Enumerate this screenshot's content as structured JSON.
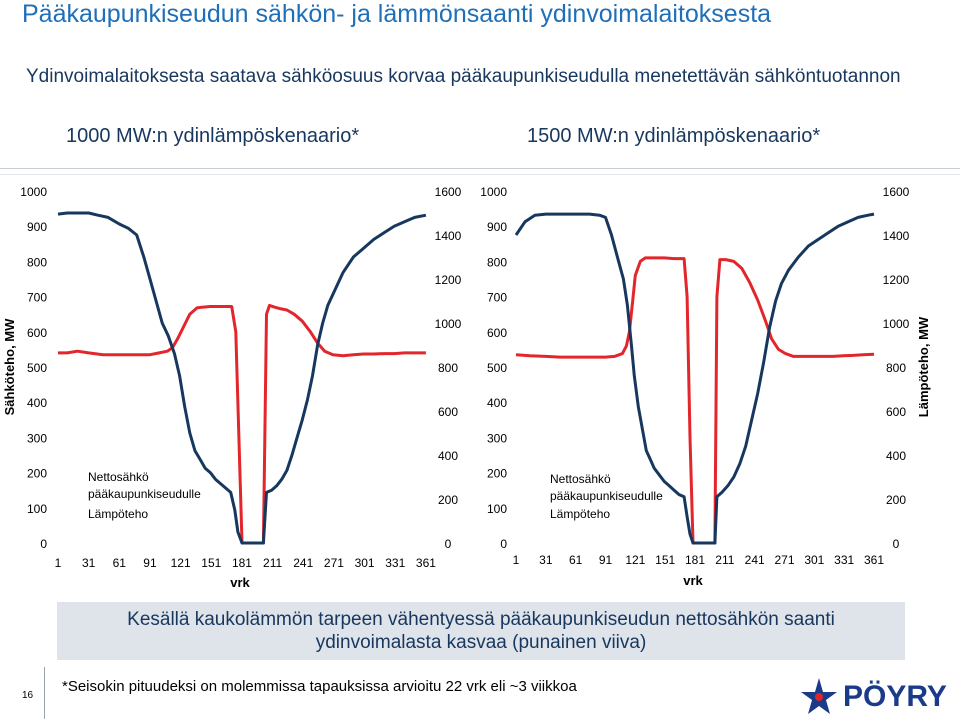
{
  "title": "Pääkaupunkiseudun sähkön- ja lämmönsaanti ydinvoimalaitoksesta",
  "subtitle": "Ydinvoimalaitoksesta saatava sähköosuus korvaa pääkaupunkiseudulla menetettävän sähköntuotannon",
  "note": {
    "line1": "Kesällä kaukolämmön tarpeen vähentyessä pääkaupunkiseudun nettosähkön saanti",
    "line2": "ydinvoimalasta kasvaa (punainen viiva)"
  },
  "footnote": "*Seisokin pituudeksi on molemmissa tapauksissa arvioitu 22 vrk eli ~3 viikkoa",
  "page_number": "16",
  "logo": {
    "text": "PÖYRY",
    "icon": "poyry-logo-icon",
    "color": "#1a3a8a",
    "accent": "#d9262c"
  },
  "chart_data": [
    {
      "type": "line",
      "title": "1000 MW:n ydinlämpöskenaario*",
      "xlabel": "vrk",
      "ylabel": "Sähköteho, MW",
      "y2label": "",
      "ylim": [
        0,
        1000
      ],
      "y2lim": [
        0,
        1600
      ],
      "xticks": [
        "1",
        "31",
        "61",
        "91",
        "121",
        "151",
        "181",
        "211",
        "241",
        "271",
        "301",
        "331",
        "361"
      ],
      "yticks": [
        "0",
        "100",
        "200",
        "300",
        "400",
        "500",
        "600",
        "700",
        "800",
        "900",
        "1000"
      ],
      "y2ticks": [
        "0",
        "200",
        "400",
        "600",
        "800",
        "1000",
        "1200",
        "1400",
        "1600"
      ],
      "grid": false,
      "legend_position": "bottom-left",
      "series": [
        {
          "name": "Nettosähkö pääkaupunkiseudulle",
          "color": "#e3262c",
          "axis": "left",
          "points": [
            [
              1,
              540
            ],
            [
              10,
              540
            ],
            [
              20,
              545
            ],
            [
              31,
              540
            ],
            [
              45,
              535
            ],
            [
              61,
              535
            ],
            [
              75,
              535
            ],
            [
              85,
              535
            ],
            [
              91,
              535
            ],
            [
              100,
              540
            ],
            [
              108,
              545
            ],
            [
              113,
              555
            ],
            [
              118,
              580
            ],
            [
              124,
              615
            ],
            [
              130,
              650
            ],
            [
              137,
              668
            ],
            [
              142,
              670
            ],
            [
              150,
              672
            ],
            [
              158,
              672
            ],
            [
              164,
              672
            ],
            [
              167,
              672
            ],
            [
              171,
              672
            ],
            [
              175,
              600
            ],
            [
              178,
              300
            ],
            [
              181,
              0
            ],
            [
              187,
              0
            ],
            [
              193,
              0
            ],
            [
              199,
              0
            ],
            [
              202,
              0
            ],
            [
              205,
              650
            ],
            [
              208,
              675
            ],
            [
              213,
              670
            ],
            [
              218,
              666
            ],
            [
              225,
              662
            ],
            [
              232,
              650
            ],
            [
              240,
              630
            ],
            [
              248,
              600
            ],
            [
              255,
              568
            ],
            [
              262,
              545
            ],
            [
              270,
              535
            ],
            [
              280,
              532
            ],
            [
              290,
              535
            ],
            [
              300,
              537
            ],
            [
              310,
              537
            ],
            [
              320,
              538
            ],
            [
              330,
              538
            ],
            [
              340,
              540
            ],
            [
              350,
              540
            ],
            [
              361,
              540
            ]
          ]
        },
        {
          "name": "Lämpöteho",
          "color": "#17375e",
          "axis": "right",
          "points": [
            [
              1,
              1495
            ],
            [
              10,
              1500
            ],
            [
              20,
              1500
            ],
            [
              31,
              1500
            ],
            [
              40,
              1490
            ],
            [
              50,
              1480
            ],
            [
              61,
              1450
            ],
            [
              70,
              1430
            ],
            [
              78,
              1400
            ],
            [
              85,
              1300
            ],
            [
              91,
              1200
            ],
            [
              97,
              1100
            ],
            [
              103,
              1000
            ],
            [
              109,
              940
            ],
            [
              115,
              860
            ],
            [
              120,
              760
            ],
            [
              125,
              620
            ],
            [
              130,
              500
            ],
            [
              135,
              420
            ],
            [
              140,
              380
            ],
            [
              145,
              340
            ],
            [
              150,
              320
            ],
            [
              155,
              290
            ],
            [
              160,
              270
            ],
            [
              165,
              250
            ],
            [
              170,
              230
            ],
            [
              174,
              150
            ],
            [
              177,
              50
            ],
            [
              181,
              0
            ],
            [
              187,
              0
            ],
            [
              193,
              0
            ],
            [
              199,
              0
            ],
            [
              202,
              0
            ],
            [
              205,
              230
            ],
            [
              210,
              240
            ],
            [
              215,
              260
            ],
            [
              220,
              290
            ],
            [
              225,
              330
            ],
            [
              230,
              400
            ],
            [
              235,
              480
            ],
            [
              240,
              560
            ],
            [
              245,
              650
            ],
            [
              250,
              760
            ],
            [
              255,
              900
            ],
            [
              260,
              1000
            ],
            [
              265,
              1080
            ],
            [
              270,
              1130
            ],
            [
              280,
              1230
            ],
            [
              290,
              1300
            ],
            [
              300,
              1340
            ],
            [
              310,
              1380
            ],
            [
              320,
              1410
            ],
            [
              330,
              1440
            ],
            [
              340,
              1460
            ],
            [
              350,
              1480
            ],
            [
              361,
              1490
            ]
          ]
        }
      ]
    },
    {
      "type": "line",
      "title": "1500 MW:n ydinlämpöskenaario*",
      "xlabel": "vrk",
      "ylabel": "",
      "y2label": "Lämpöteho, MW",
      "ylim": [
        0,
        1000
      ],
      "y2lim": [
        0,
        1600
      ],
      "xticks": [
        "1",
        "31",
        "61",
        "91",
        "121",
        "151",
        "181",
        "211",
        "241",
        "271",
        "301",
        "331",
        "361"
      ],
      "yticks": [
        "0",
        "100",
        "200",
        "300",
        "400",
        "500",
        "600",
        "700",
        "800",
        "900",
        "1000"
      ],
      "y2ticks": [
        "0",
        "200",
        "400",
        "600",
        "800",
        "1000",
        "1200",
        "1400",
        "1600"
      ],
      "grid": false,
      "legend_position": "bottom-left",
      "series": [
        {
          "name": "Nettosähkö pääkaupunkiseudulle",
          "color": "#e3262c",
          "axis": "left",
          "points": [
            [
              1,
              535
            ],
            [
              15,
              532
            ],
            [
              31,
              530
            ],
            [
              45,
              528
            ],
            [
              61,
              528
            ],
            [
              75,
              528
            ],
            [
              91,
              528
            ],
            [
              100,
              530
            ],
            [
              108,
              538
            ],
            [
              112,
              560
            ],
            [
              115,
              600
            ],
            [
              118,
              680
            ],
            [
              121,
              760
            ],
            [
              126,
              800
            ],
            [
              131,
              810
            ],
            [
              140,
              810
            ],
            [
              150,
              810
            ],
            [
              160,
              808
            ],
            [
              166,
              808
            ],
            [
              170,
              808
            ],
            [
              173,
              700
            ],
            [
              176,
              300
            ],
            [
              179,
              0
            ],
            [
              186,
              0
            ],
            [
              192,
              0
            ],
            [
              198,
              0
            ],
            [
              201,
              0
            ],
            [
              203,
              700
            ],
            [
              206,
              805
            ],
            [
              212,
              805
            ],
            [
              220,
              800
            ],
            [
              228,
              780
            ],
            [
              236,
              740
            ],
            [
              244,
              690
            ],
            [
              252,
              630
            ],
            [
              258,
              580
            ],
            [
              265,
              550
            ],
            [
              272,
              538
            ],
            [
              280,
              530
            ],
            [
              290,
              530
            ],
            [
              300,
              530
            ],
            [
              310,
              530
            ],
            [
              320,
              530
            ],
            [
              330,
              532
            ],
            [
              340,
              533
            ],
            [
              350,
              535
            ],
            [
              361,
              536
            ]
          ]
        },
        {
          "name": "Lämpöteho",
          "color": "#17375e",
          "axis": "right",
          "points": [
            [
              1,
              1400
            ],
            [
              10,
              1460
            ],
            [
              20,
              1490
            ],
            [
              31,
              1495
            ],
            [
              50,
              1495
            ],
            [
              61,
              1495
            ],
            [
              75,
              1495
            ],
            [
              85,
              1490
            ],
            [
              91,
              1480
            ],
            [
              97,
              1400
            ],
            [
              103,
              1300
            ],
            [
              109,
              1200
            ],
            [
              113,
              1080
            ],
            [
              117,
              900
            ],
            [
              120,
              760
            ],
            [
              124,
              620
            ],
            [
              128,
              520
            ],
            [
              132,
              420
            ],
            [
              136,
              380
            ],
            [
              140,
              340
            ],
            [
              145,
              310
            ],
            [
              150,
              280
            ],
            [
              155,
              260
            ],
            [
              160,
              240
            ],
            [
              165,
              220
            ],
            [
              170,
              210
            ],
            [
              173,
              120
            ],
            [
              176,
              40
            ],
            [
              179,
              0
            ],
            [
              186,
              0
            ],
            [
              192,
              0
            ],
            [
              198,
              0
            ],
            [
              201,
              0
            ],
            [
              203,
              210
            ],
            [
              208,
              230
            ],
            [
              214,
              260
            ],
            [
              220,
              300
            ],
            [
              226,
              360
            ],
            [
              232,
              440
            ],
            [
              238,
              560
            ],
            [
              244,
              680
            ],
            [
              250,
              820
            ],
            [
              256,
              980
            ],
            [
              262,
              1100
            ],
            [
              268,
              1180
            ],
            [
              275,
              1240
            ],
            [
              285,
              1300
            ],
            [
              295,
              1350
            ],
            [
              305,
              1380
            ],
            [
              315,
              1410
            ],
            [
              325,
              1440
            ],
            [
              335,
              1460
            ],
            [
              345,
              1480
            ],
            [
              355,
              1490
            ],
            [
              361,
              1495
            ]
          ]
        }
      ]
    }
  ]
}
